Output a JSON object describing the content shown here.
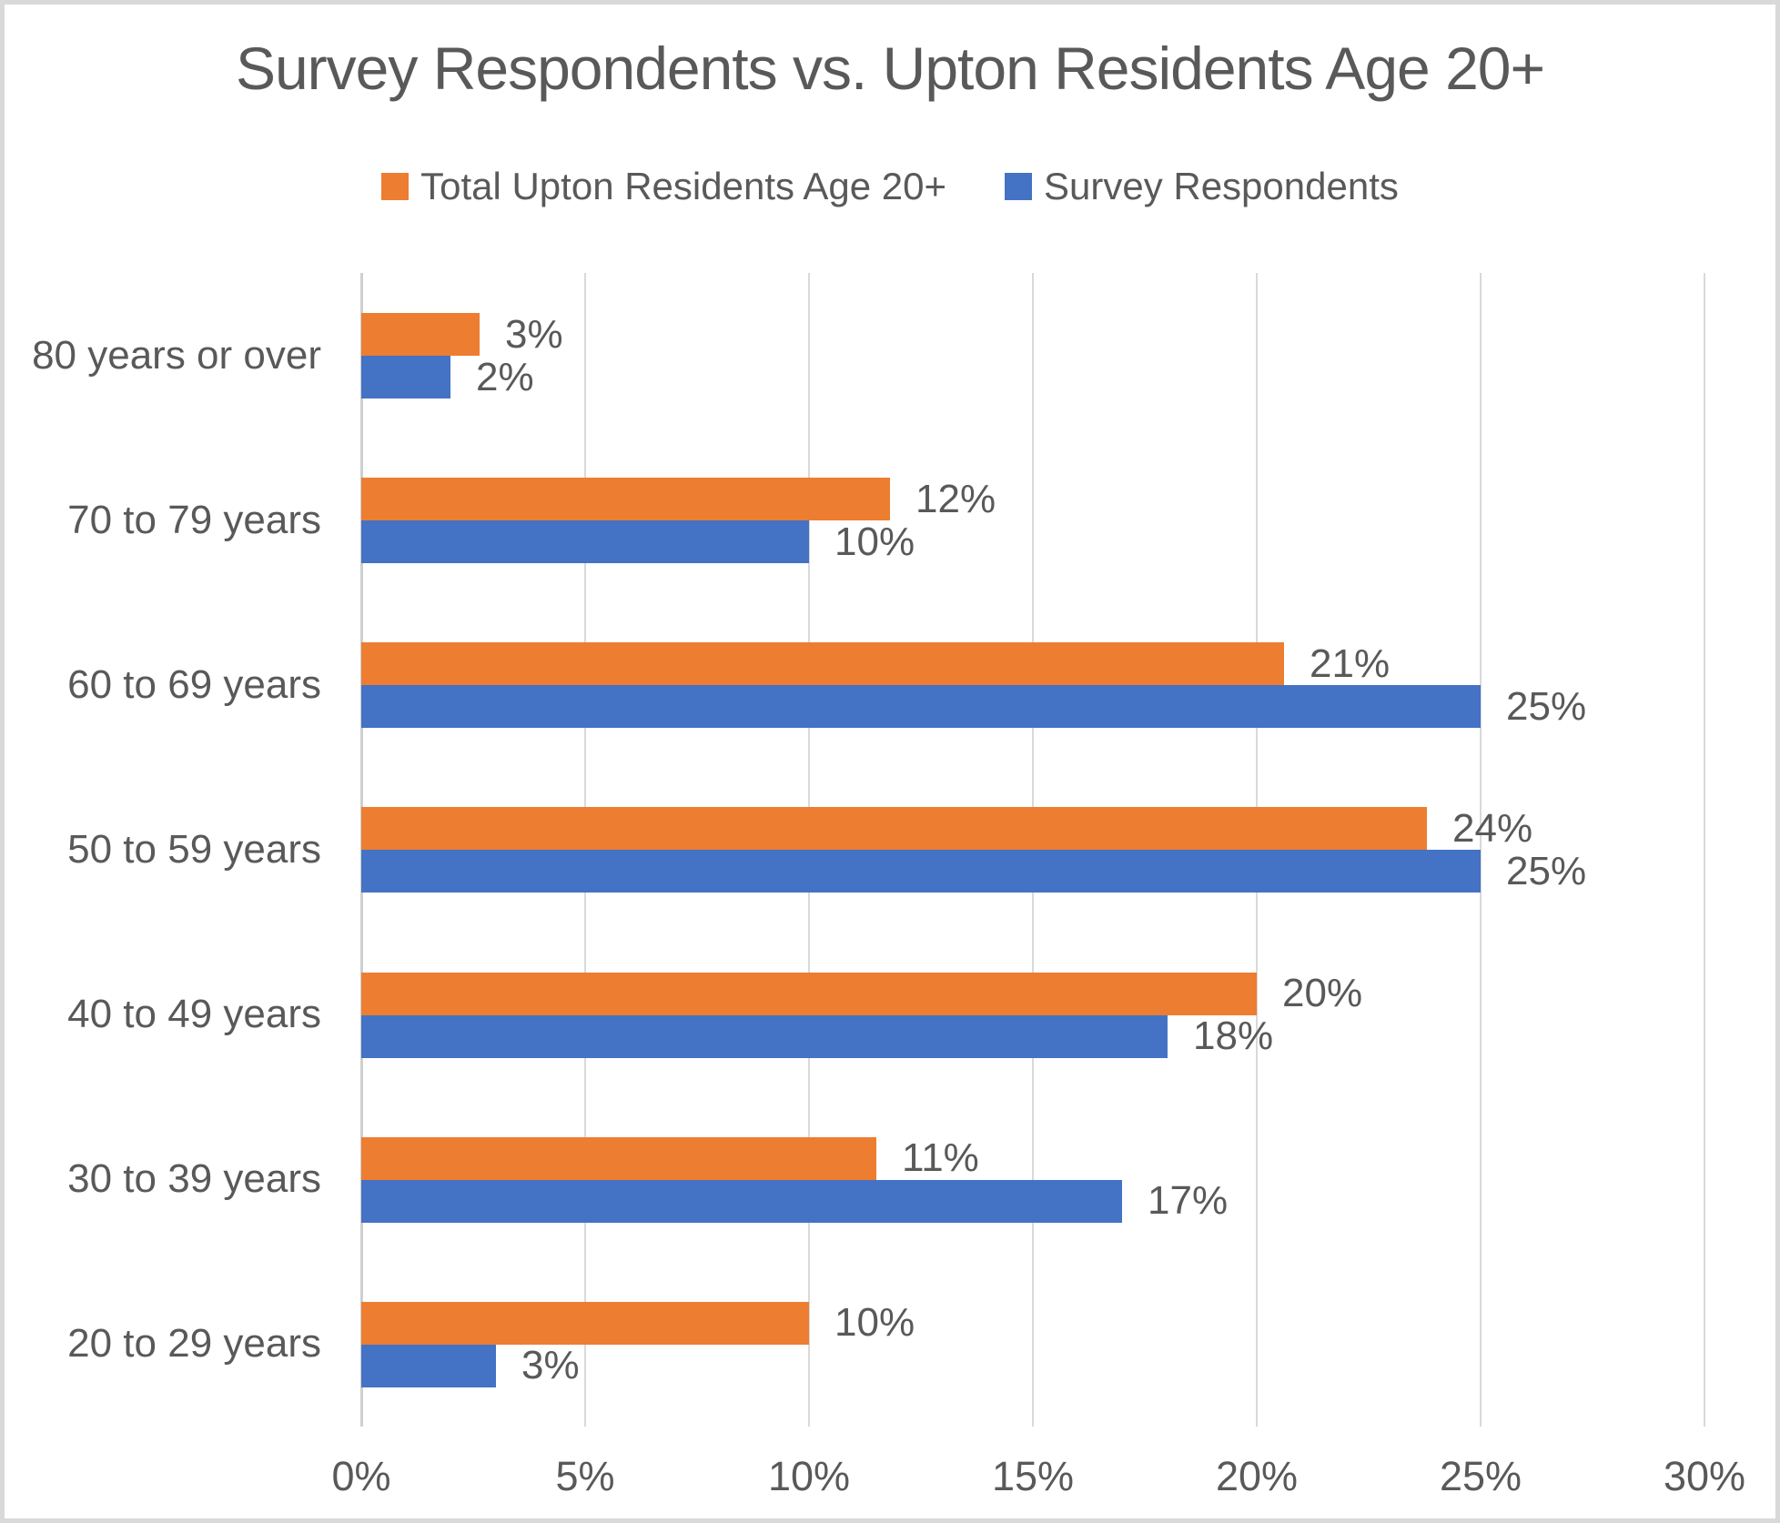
{
  "title": "Survey Respondents vs. Upton Residents Age 20+",
  "legend": [
    {
      "label": "Total Upton Residents Age 20+",
      "color": "#ED7D31"
    },
    {
      "label": "Survey Respondents",
      "color": "#4472C4"
    }
  ],
  "chart_data": {
    "type": "bar",
    "orientation": "horizontal",
    "title": "Survey Respondents vs. Upton Residents Age 20+",
    "categories": [
      "80 years or over",
      "70 to 79 years",
      "60 to 69 years",
      "50 to 59 years",
      "40 to 49 years",
      "30 to 39 years",
      "20 to 29 years"
    ],
    "series": [
      {
        "name": "Total Upton Residents Age 20+",
        "color": "#ED7D31",
        "values": [
          3,
          12,
          21,
          24,
          20,
          11,
          10
        ],
        "labels": [
          "3%",
          "12%",
          "21%",
          "24%",
          "20%",
          "11%",
          "10%"
        ],
        "plot_values": [
          2.65,
          11.8,
          20.6,
          23.8,
          20,
          11.5,
          10
        ]
      },
      {
        "name": "Survey Respondents",
        "color": "#4472C4",
        "values": [
          2,
          10,
          25,
          25,
          18,
          17,
          3
        ],
        "labels": [
          "2%",
          "10%",
          "25%",
          "25%",
          "18%",
          "17%",
          "3%"
        ],
        "plot_values": [
          2,
          10,
          25,
          25,
          18,
          17,
          3
        ]
      }
    ],
    "x_axis": {
      "tick_labels": [
        "0%",
        "5%",
        "10%",
        "15%",
        "20%",
        "25%",
        "30%"
      ],
      "tick_values": [
        0,
        5,
        10,
        15,
        20,
        25,
        30
      ],
      "min": 0,
      "max": 30
    },
    "grid": true,
    "legend_position": "top",
    "data_labels": true,
    "colors": {
      "text": "#595959",
      "grid": "#D9D9D9",
      "axis": "#CFCFCF",
      "background": "#FFFFFF",
      "frame_border": "#D9D9D9"
    }
  }
}
